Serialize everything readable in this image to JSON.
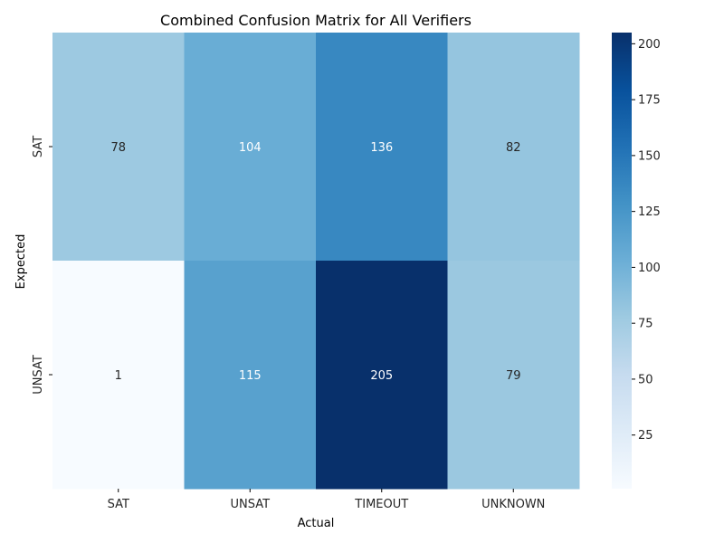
{
  "chart_data": {
    "type": "heatmap",
    "title": "Combined Confusion Matrix for All Verifiers",
    "xlabel": "Actual",
    "ylabel": "Expected",
    "x_categories": [
      "SAT",
      "UNSAT",
      "TIMEOUT",
      "UNKNOWN"
    ],
    "y_categories": [
      "SAT",
      "UNSAT"
    ],
    "values": [
      [
        78,
        104,
        136,
        82
      ],
      [
        1,
        115,
        205,
        79
      ]
    ],
    "colormap": "Blues",
    "color_range": [
      1,
      205
    ],
    "colorbar_ticks": [
      25,
      50,
      75,
      100,
      125,
      150,
      175,
      200
    ],
    "annotated": true,
    "grid": false
  }
}
